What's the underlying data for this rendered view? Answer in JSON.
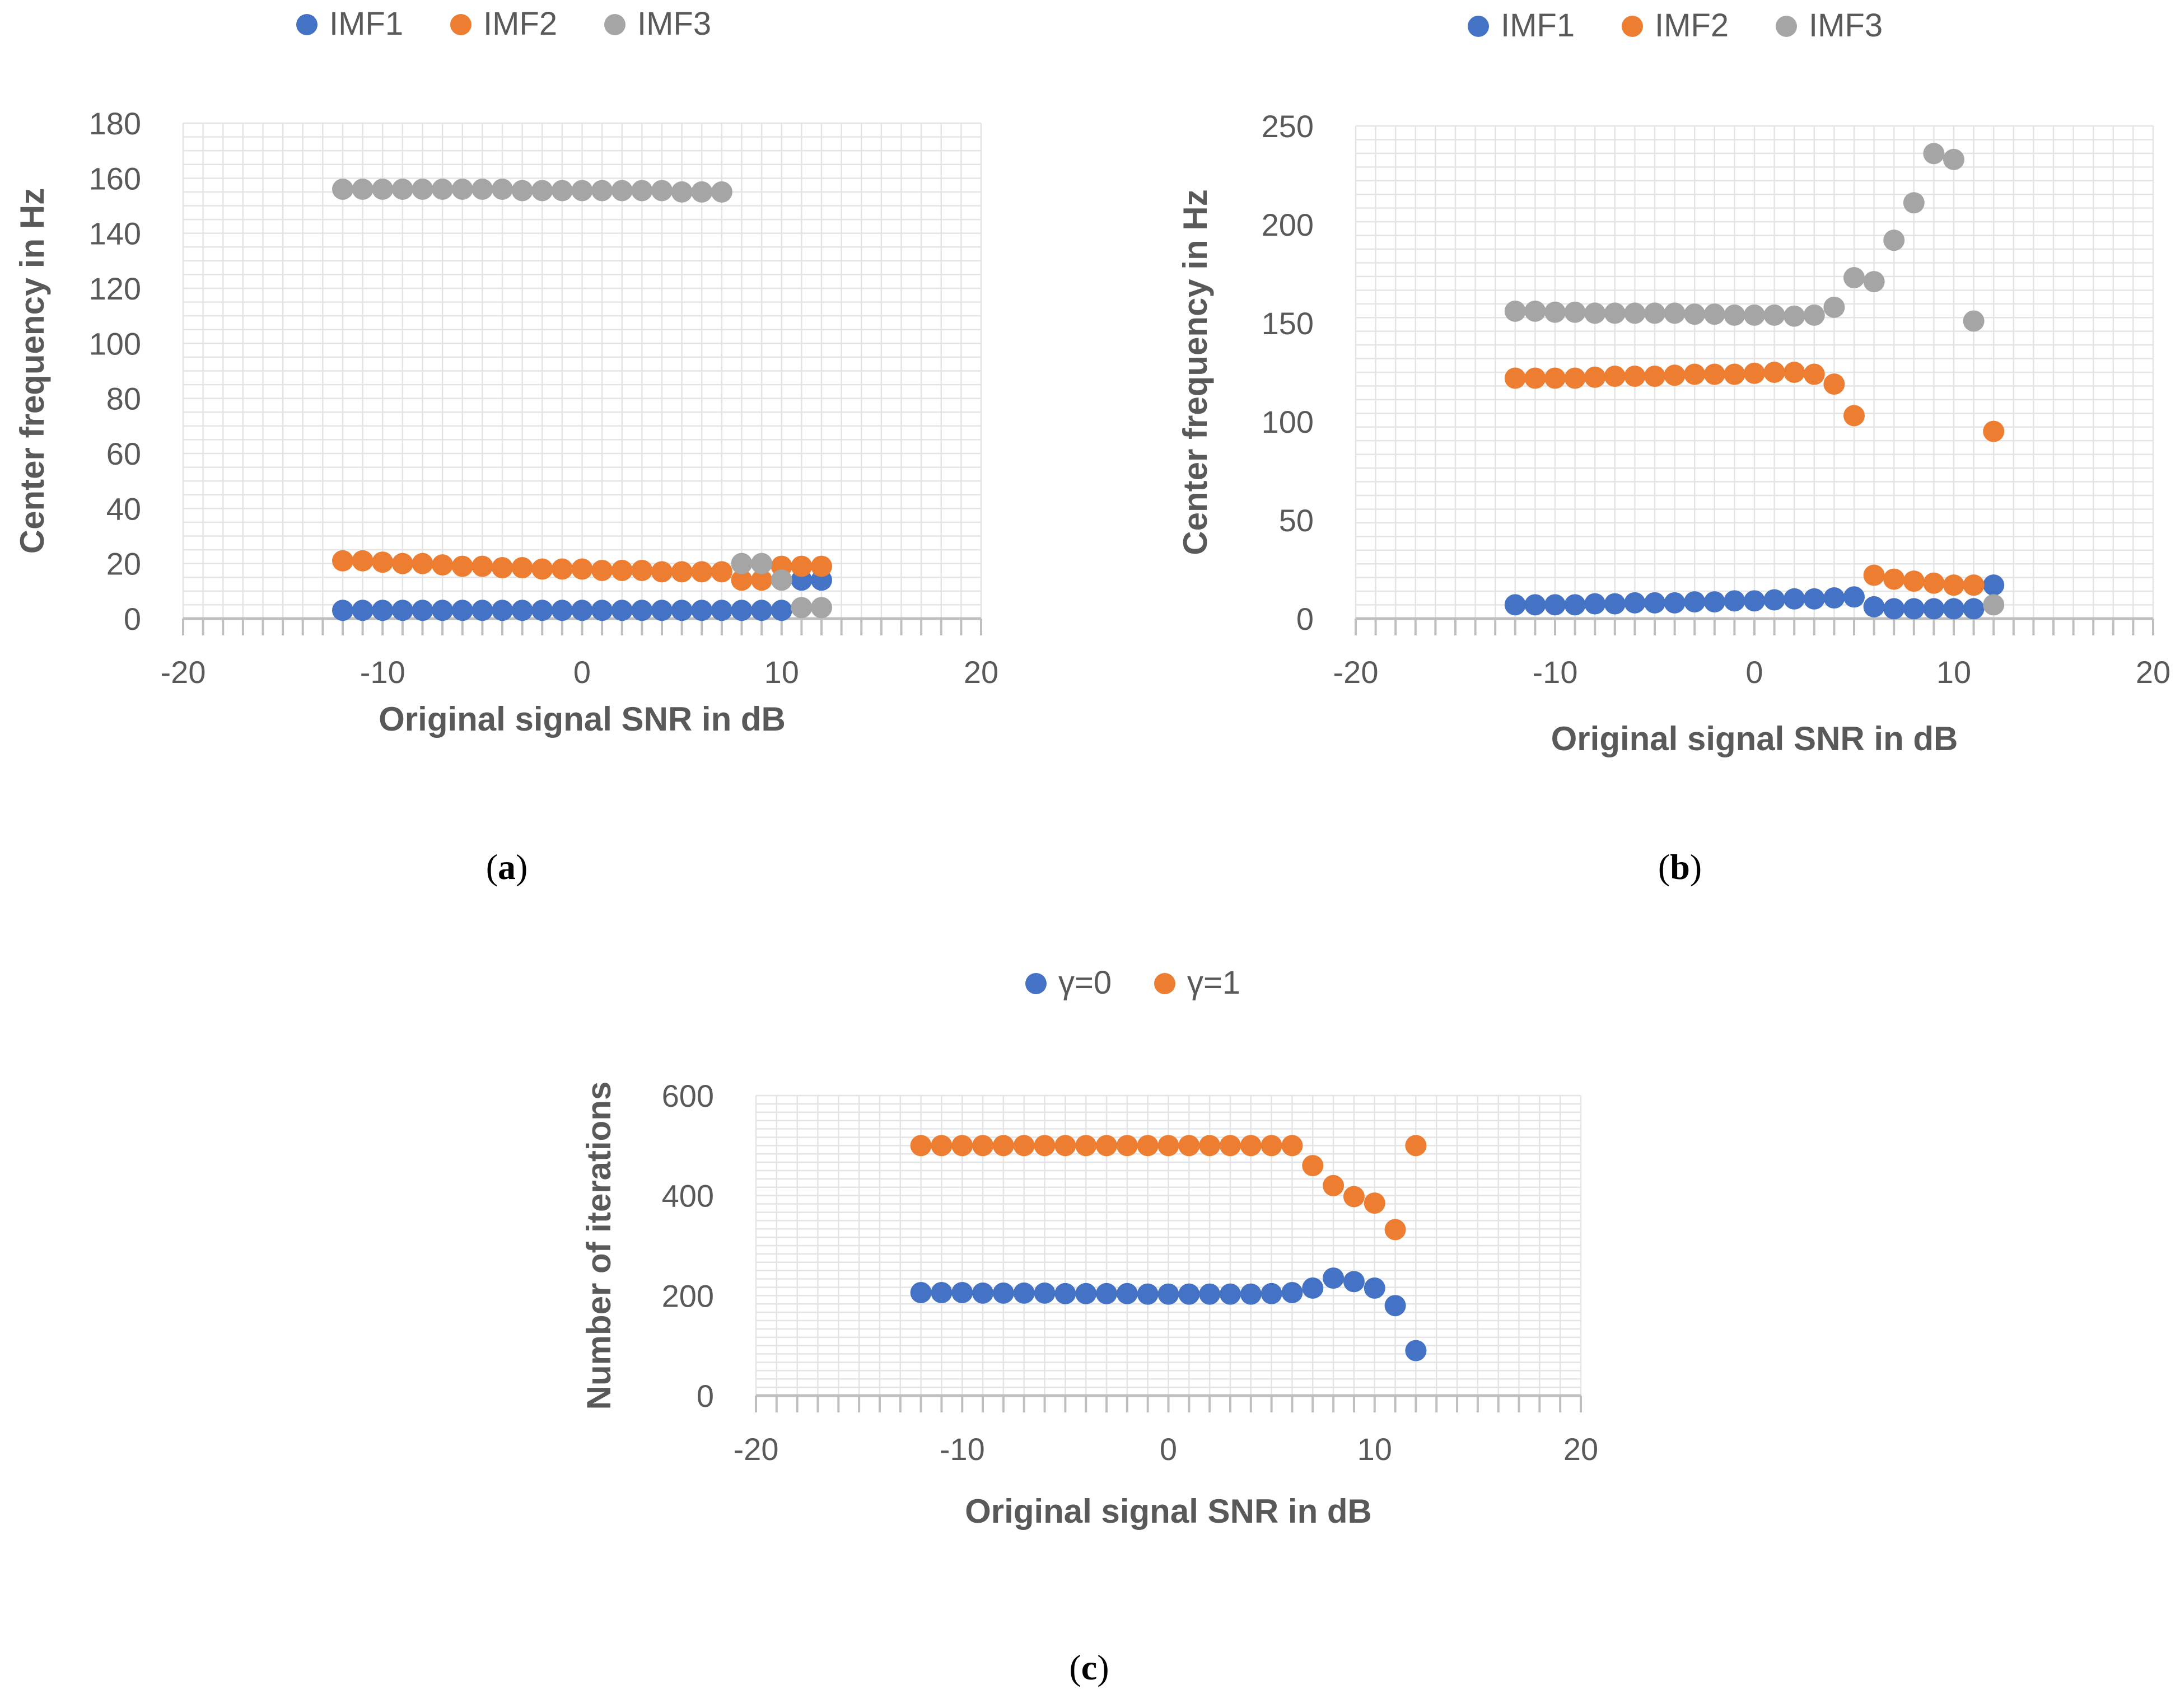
{
  "chart_data": [
    {
      "id": "a",
      "type": "scatter",
      "caption_label": "a",
      "xlabel": "Original signal SNR in dB",
      "ylabel": "Center frequency in Hz",
      "xlim": [
        -20,
        20
      ],
      "ylim": [
        0,
        180
      ],
      "xticks": [
        -20,
        -10,
        0,
        10,
        20
      ],
      "yticks": [
        0,
        20,
        40,
        60,
        80,
        100,
        120,
        140,
        160,
        180
      ],
      "grid": true,
      "legend_position": "top",
      "series": [
        {
          "name": "IMF1",
          "color": "#4472C4",
          "points": [
            [
              -12,
              3
            ],
            [
              -11,
              3
            ],
            [
              -10,
              3
            ],
            [
              -9,
              3
            ],
            [
              -8,
              3
            ],
            [
              -7,
              3
            ],
            [
              -6,
              3
            ],
            [
              -5,
              3
            ],
            [
              -4,
              3
            ],
            [
              -3,
              3
            ],
            [
              -2,
              3
            ],
            [
              -1,
              3
            ],
            [
              0,
              3
            ],
            [
              1,
              3
            ],
            [
              2,
              3
            ],
            [
              3,
              3
            ],
            [
              4,
              3
            ],
            [
              5,
              3
            ],
            [
              6,
              3
            ],
            [
              7,
              3
            ],
            [
              8,
              3
            ],
            [
              9,
              3
            ],
            [
              10,
              3
            ],
            [
              11,
              14
            ],
            [
              12,
              14
            ]
          ]
        },
        {
          "name": "IMF2",
          "color": "#ED7D31",
          "points": [
            [
              -12,
              21
            ],
            [
              -11,
              21
            ],
            [
              -10,
              20.5
            ],
            [
              -9,
              20
            ],
            [
              -8,
              20
            ],
            [
              -7,
              19.5
            ],
            [
              -6,
              19
            ],
            [
              -5,
              19
            ],
            [
              -4,
              18.5
            ],
            [
              -3,
              18.5
            ],
            [
              -2,
              18
            ],
            [
              -1,
              18
            ],
            [
              0,
              18
            ],
            [
              1,
              17.5
            ],
            [
              2,
              17.5
            ],
            [
              3,
              17.5
            ],
            [
              4,
              17
            ],
            [
              5,
              17
            ],
            [
              6,
              17
            ],
            [
              7,
              17
            ],
            [
              8,
              14
            ],
            [
              9,
              14
            ],
            [
              10,
              19
            ],
            [
              11,
              19
            ],
            [
              12,
              19
            ]
          ]
        },
        {
          "name": "IMF3",
          "color": "#A5A5A5",
          "points": [
            [
              -12,
              156
            ],
            [
              -11,
              156
            ],
            [
              -10,
              156
            ],
            [
              -9,
              156
            ],
            [
              -8,
              156
            ],
            [
              -7,
              156
            ],
            [
              -6,
              156
            ],
            [
              -5,
              156
            ],
            [
              -4,
              156
            ],
            [
              -3,
              155.5
            ],
            [
              -2,
              155.5
            ],
            [
              -1,
              155.5
            ],
            [
              0,
              155.5
            ],
            [
              1,
              155.5
            ],
            [
              2,
              155.5
            ],
            [
              3,
              155.5
            ],
            [
              4,
              155.5
            ],
            [
              5,
              155
            ],
            [
              6,
              155
            ],
            [
              7,
              155
            ],
            [
              8,
              20
            ],
            [
              9,
              20
            ],
            [
              10,
              14
            ],
            [
              11,
              4
            ],
            [
              12,
              4
            ]
          ]
        }
      ]
    },
    {
      "id": "b",
      "type": "scatter",
      "caption_label": "b",
      "xlabel": "Original signal SNR in dB",
      "ylabel": "Center frequency in Hz",
      "xlim": [
        -20,
        20
      ],
      "ylim": [
        0,
        250
      ],
      "xticks": [
        -20,
        -10,
        0,
        10,
        20
      ],
      "yticks": [
        0,
        50,
        100,
        150,
        200,
        250
      ],
      "grid": true,
      "legend_position": "top",
      "series": [
        {
          "name": "IMF1",
          "color": "#4472C4",
          "points": [
            [
              -12,
              7
            ],
            [
              -11,
              7
            ],
            [
              -10,
              7
            ],
            [
              -9,
              7
            ],
            [
              -8,
              7.5
            ],
            [
              -7,
              7.5
            ],
            [
              -6,
              8
            ],
            [
              -5,
              8
            ],
            [
              -4,
              8
            ],
            [
              -3,
              8.5
            ],
            [
              -2,
              8.5
            ],
            [
              -1,
              9
            ],
            [
              0,
              9
            ],
            [
              1,
              9.5
            ],
            [
              2,
              10
            ],
            [
              3,
              10
            ],
            [
              4,
              10.5
            ],
            [
              5,
              11
            ],
            [
              6,
              6
            ],
            [
              7,
              5
            ],
            [
              8,
              5
            ],
            [
              9,
              5
            ],
            [
              10,
              5
            ],
            [
              11,
              5
            ],
            [
              12,
              17
            ]
          ]
        },
        {
          "name": "IMF2",
          "color": "#ED7D31",
          "points": [
            [
              -12,
              122
            ],
            [
              -11,
              122
            ],
            [
              -10,
              122
            ],
            [
              -9,
              122
            ],
            [
              -8,
              122.5
            ],
            [
              -7,
              123
            ],
            [
              -6,
              123
            ],
            [
              -5,
              123
            ],
            [
              -4,
              123.5
            ],
            [
              -3,
              124
            ],
            [
              -2,
              124
            ],
            [
              -1,
              124
            ],
            [
              0,
              124.5
            ],
            [
              1,
              125
            ],
            [
              2,
              125
            ],
            [
              3,
              124
            ],
            [
              4,
              119
            ],
            [
              5,
              103
            ],
            [
              6,
              22
            ],
            [
              7,
              20
            ],
            [
              8,
              19
            ],
            [
              9,
              18
            ],
            [
              10,
              17
            ],
            [
              11,
              17
            ],
            [
              12,
              95
            ]
          ]
        },
        {
          "name": "IMF3",
          "color": "#A5A5A5",
          "points": [
            [
              -12,
              156
            ],
            [
              -11,
              156
            ],
            [
              -10,
              155.5
            ],
            [
              -9,
              155.5
            ],
            [
              -8,
              155
            ],
            [
              -7,
              155
            ],
            [
              -6,
              155
            ],
            [
              -5,
              155
            ],
            [
              -4,
              155
            ],
            [
              -3,
              154.5
            ],
            [
              -2,
              154.5
            ],
            [
              -1,
              154
            ],
            [
              0,
              154
            ],
            [
              1,
              154
            ],
            [
              2,
              153.5
            ],
            [
              3,
              154
            ],
            [
              4,
              158
            ],
            [
              5,
              173
            ],
            [
              6,
              171
            ],
            [
              7,
              192
            ],
            [
              8,
              211
            ],
            [
              9,
              236
            ],
            [
              10,
              233
            ],
            [
              11,
              151
            ],
            [
              12,
              7
            ]
          ]
        }
      ]
    },
    {
      "id": "c",
      "type": "scatter",
      "caption_label": "c",
      "xlabel": "Original signal SNR in dB",
      "ylabel": "Number of iterations",
      "xlim": [
        -20,
        20
      ],
      "ylim": [
        0,
        600
      ],
      "xticks": [
        -20,
        -10,
        0,
        10,
        20
      ],
      "yticks": [
        0,
        200,
        400,
        600
      ],
      "grid": true,
      "legend_position": "top",
      "series": [
        {
          "name": "γ=0",
          "color": "#4472C4",
          "points": [
            [
              -12,
              206
            ],
            [
              -11,
              206
            ],
            [
              -10,
              206
            ],
            [
              -9,
              205
            ],
            [
              -8,
              205
            ],
            [
              -7,
              205
            ],
            [
              -6,
              205
            ],
            [
              -5,
              204
            ],
            [
              -4,
              204
            ],
            [
              -3,
              204
            ],
            [
              -2,
              204
            ],
            [
              -1,
              203
            ],
            [
              0,
              203
            ],
            [
              1,
              203
            ],
            [
              2,
              203
            ],
            [
              3,
              203
            ],
            [
              4,
              203
            ],
            [
              5,
              204
            ],
            [
              6,
              206
            ],
            [
              7,
              215
            ],
            [
              8,
              235
            ],
            [
              9,
              228
            ],
            [
              10,
              215
            ],
            [
              11,
              180
            ],
            [
              12,
              90
            ]
          ]
        },
        {
          "name": "γ=1",
          "color": "#ED7D31",
          "points": [
            [
              -12,
              500
            ],
            [
              -11,
              500
            ],
            [
              -10,
              500
            ],
            [
              -9,
              500
            ],
            [
              -8,
              500
            ],
            [
              -7,
              500
            ],
            [
              -6,
              500
            ],
            [
              -5,
              500
            ],
            [
              -4,
              500
            ],
            [
              -3,
              500
            ],
            [
              -2,
              500
            ],
            [
              -1,
              500
            ],
            [
              0,
              500
            ],
            [
              1,
              500
            ],
            [
              2,
              500
            ],
            [
              3,
              500
            ],
            [
              4,
              500
            ],
            [
              5,
              500
            ],
            [
              6,
              500
            ],
            [
              7,
              460
            ],
            [
              8,
              420
            ],
            [
              9,
              398
            ],
            [
              10,
              385
            ],
            [
              11,
              332
            ],
            [
              12,
              500
            ]
          ]
        }
      ]
    }
  ]
}
